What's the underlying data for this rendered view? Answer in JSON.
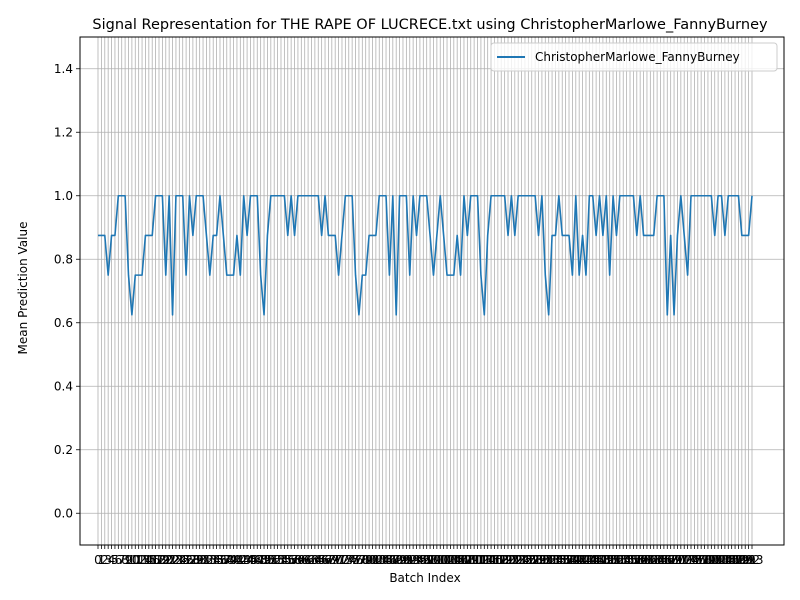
{
  "chart_data": {
    "type": "line",
    "title": "Signal Representation for THE RAPE OF LUCRECE.txt using ChristopherMarlowe_FannyBurney",
    "xlabel": "Batch Index",
    "ylabel": "Mean Prediction Value",
    "ylim": [
      -0.1,
      1.5
    ],
    "yticks": [
      "0.0",
      "0.2",
      "0.4",
      "0.6",
      "0.8",
      "1.0",
      "1.2",
      "1.4"
    ],
    "xticks": [
      "0",
      "1",
      "2",
      "3",
      "4",
      "5",
      "6",
      "7",
      "8",
      "9",
      "10",
      "11",
      "12",
      "13",
      "14",
      "15",
      "16",
      "17",
      "18",
      "19",
      "20",
      "21",
      "22",
      "23",
      "24",
      "25",
      "26",
      "27",
      "28",
      "29",
      "30",
      "31",
      "32",
      "33",
      "34",
      "35",
      "36",
      "37",
      "38",
      "39",
      "40",
      "41",
      "42",
      "43",
      "44",
      "45",
      "46",
      "47",
      "48",
      "49",
      "50",
      "51",
      "52",
      "53",
      "54",
      "55",
      "56",
      "57",
      "58",
      "59",
      "60",
      "61",
      "62",
      "63",
      "64",
      "65",
      "66",
      "67",
      "68",
      "69",
      "70",
      "71",
      "72",
      "73",
      "74",
      "75",
      "76",
      "77",
      "78",
      "79",
      "80",
      "81",
      "82",
      "83",
      "84",
      "85",
      "86",
      "87",
      "88",
      "89",
      "90",
      "91",
      "92",
      "93",
      "94",
      "95",
      "96",
      "97",
      "98",
      "99",
      "100",
      "101",
      "102",
      "103",
      "104",
      "105",
      "106",
      "107",
      "108",
      "109",
      "110",
      "111",
      "112",
      "113",
      "114",
      "115",
      "116",
      "117",
      "118",
      "119",
      "120",
      "121",
      "122",
      "123",
      "124",
      "125",
      "126",
      "127",
      "128",
      "129",
      "130",
      "131",
      "132",
      "133",
      "134",
      "135",
      "136",
      "137",
      "138",
      "139",
      "140",
      "141",
      "142",
      "143",
      "144",
      "145",
      "146",
      "147",
      "148",
      "149",
      "150",
      "151",
      "152",
      "153",
      "154",
      "155",
      "156",
      "157",
      "158",
      "159",
      "160",
      "161",
      "162",
      "163",
      "164",
      "165",
      "166",
      "167",
      "168",
      "169",
      "170",
      "171",
      "172",
      "173",
      "174",
      "175",
      "176",
      "177",
      "178",
      "179",
      "180",
      "181",
      "182",
      "183",
      "184",
      "185",
      "186",
      "187",
      "188",
      "189",
      "190",
      "191",
      "192",
      "193"
    ],
    "grid": true,
    "legend_position": "top-right",
    "series": [
      {
        "name": "ChristopherMarlowe_FannyBurney",
        "color": "#1f77b4",
        "values": [
          0.875,
          0.875,
          0.875,
          0.75,
          0.875,
          0.875,
          1.0,
          1.0,
          1.0,
          0.75,
          0.625,
          0.75,
          0.75,
          0.75,
          0.875,
          0.875,
          0.875,
          1.0,
          1.0,
          1.0,
          0.75,
          1.0,
          0.625,
          1.0,
          1.0,
          1.0,
          0.75,
          1.0,
          0.875,
          1.0,
          1.0,
          1.0,
          0.875,
          0.75,
          0.875,
          0.875,
          1.0,
          0.875,
          0.75,
          0.75,
          0.75,
          0.875,
          0.75,
          1.0,
          0.875,
          1.0,
          1.0,
          1.0,
          0.75,
          0.625,
          0.875,
          1.0,
          1.0,
          1.0,
          1.0,
          1.0,
          0.875,
          1.0,
          0.875,
          1.0,
          1.0,
          1.0,
          1.0,
          1.0,
          1.0,
          1.0,
          0.875,
          1.0,
          0.875,
          0.875,
          0.875,
          0.75,
          0.875,
          1.0,
          1.0,
          1.0,
          0.75,
          0.625,
          0.75,
          0.75,
          0.875,
          0.875,
          0.875,
          1.0,
          1.0,
          1.0,
          0.75,
          1.0,
          0.625,
          1.0,
          1.0,
          1.0,
          0.75,
          1.0,
          0.875,
          1.0,
          1.0,
          1.0,
          0.875,
          0.75,
          0.875,
          1.0,
          0.875,
          0.75,
          0.75,
          0.75,
          0.875,
          0.75,
          1.0,
          0.875,
          1.0,
          1.0,
          1.0,
          0.75,
          0.625,
          0.875,
          1.0,
          1.0,
          1.0,
          1.0,
          1.0,
          0.875,
          1.0,
          0.875,
          1.0,
          1.0,
          1.0,
          1.0,
          1.0,
          1.0,
          0.875,
          1.0,
          0.75,
          0.625,
          0.875,
          0.875,
          1.0,
          0.875,
          0.875,
          0.875,
          0.75,
          1.0,
          0.75,
          0.875,
          0.75,
          1.0,
          1.0,
          0.875,
          1.0,
          0.875,
          1.0,
          0.75,
          1.0,
          0.875,
          1.0,
          1.0,
          1.0,
          1.0,
          1.0,
          0.875,
          1.0,
          0.875,
          0.875,
          0.875,
          0.875,
          1.0,
          1.0,
          1.0,
          0.625,
          0.875,
          0.625,
          0.875,
          1.0,
          0.875,
          0.75,
          1.0,
          1.0,
          1.0,
          1.0,
          1.0,
          1.0,
          1.0,
          0.875,
          1.0,
          1.0,
          0.875,
          1.0,
          1.0,
          1.0,
          1.0,
          0.875,
          0.875,
          0.875,
          1.0
        ]
      }
    ]
  }
}
